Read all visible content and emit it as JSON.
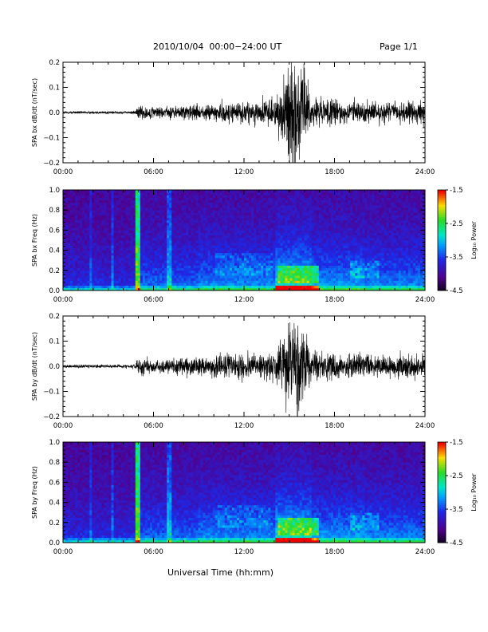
{
  "header": {
    "title": "2010/10/04  00:00−24:00 UT",
    "page": "Page 1/1"
  },
  "x_axis_title": "Universal Time (hh:mm)",
  "chart_data": [
    {
      "type": "line",
      "ylabel": "SPA bx dB/dt (nT/sec)",
      "xlim": [
        0,
        24
      ],
      "ylim": [
        -0.2,
        0.2
      ],
      "x_ticks": [
        "00:00",
        "06:00",
        "12:00",
        "18:00",
        "24:00"
      ],
      "y_ticks": [
        "0.2",
        "0.1",
        "0.0",
        "−0.1",
        "−0.2"
      ],
      "x_hours": [
        0,
        2,
        4,
        4.8,
        5,
        6,
        8,
        10,
        11.5,
        12,
        13,
        14,
        14.5,
        15,
        15.5,
        16,
        16.5,
        17,
        18,
        20,
        22,
        24
      ],
      "amplitude": [
        0.005,
        0.005,
        0.005,
        0.006,
        0.03,
        0.02,
        0.025,
        0.03,
        0.04,
        0.035,
        0.04,
        0.05,
        0.09,
        0.2,
        0.2,
        0.12,
        0.06,
        0.05,
        0.045,
        0.04,
        0.035,
        0.04
      ],
      "color": "#000000"
    },
    {
      "type": "heatmap",
      "ylabel": "SPA bx Freq (Hz)",
      "xlim": [
        0,
        24
      ],
      "ylim": [
        0.0,
        1.0
      ],
      "x_ticks": [
        "00:00",
        "06:00",
        "12:00",
        "18:00",
        "24:00"
      ],
      "y_ticks": [
        "1.0",
        "0.8",
        "0.6",
        "0.4",
        "0.2",
        "0.0"
      ],
      "colorbar": {
        "label": "Log₁₀ Power",
        "range": [
          -4.5,
          -1.5
        ],
        "ticks": [
          "-1.5",
          "-2.5",
          "-3.5",
          "-4.5"
        ]
      }
    },
    {
      "type": "line",
      "ylabel": "SPA by dB/dt (nT/sec)",
      "xlim": [
        0,
        24
      ],
      "ylim": [
        -0.2,
        0.2
      ],
      "x_ticks": [
        "00:00",
        "06:00",
        "12:00",
        "18:00",
        "24:00"
      ],
      "y_ticks": [
        "0.2",
        "0.1",
        "0.0",
        "−0.1",
        "−0.2"
      ],
      "x_hours": [
        0,
        2,
        4,
        4.8,
        5,
        6,
        8,
        10,
        11.5,
        12,
        13,
        14,
        14.5,
        15,
        15.5,
        16,
        16.5,
        17,
        18,
        20,
        22,
        24
      ],
      "amplitude": [
        0.006,
        0.006,
        0.006,
        0.008,
        0.04,
        0.02,
        0.03,
        0.035,
        0.05,
        0.04,
        0.045,
        0.055,
        0.1,
        0.2,
        0.2,
        0.12,
        0.06,
        0.05,
        0.045,
        0.04,
        0.04,
        0.045
      ],
      "color": "#000000"
    },
    {
      "type": "heatmap",
      "ylabel": "SPA by Freq (Hz)",
      "xlim": [
        0,
        24
      ],
      "ylim": [
        0.0,
        1.0
      ],
      "x_ticks": [
        "00:00",
        "06:00",
        "12:00",
        "18:00",
        "24:00"
      ],
      "y_ticks": [
        "1.0",
        "0.8",
        "0.6",
        "0.4",
        "0.2",
        "0.0"
      ],
      "colorbar": {
        "label": "Log₁₀ Power",
        "range": [
          -4.5,
          -1.5
        ],
        "ticks": [
          "-1.5",
          "-2.5",
          "-3.5",
          "-4.5"
        ]
      }
    }
  ]
}
